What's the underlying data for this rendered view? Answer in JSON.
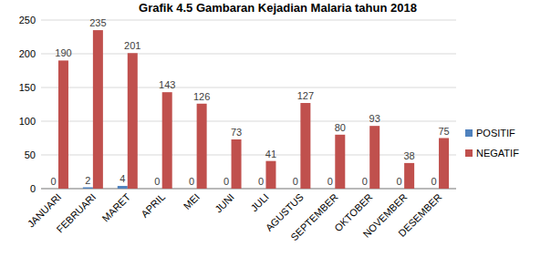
{
  "chart_data": {
    "type": "bar",
    "title": "Grafik 4.5 Gambaran Kejadian Malaria tahun 2018",
    "categories": [
      "JANUARI",
      "FEBRUARI",
      "MARET",
      "APRIL",
      "MEI",
      "JUNI",
      "JULI",
      "AGUSTUS",
      "SEPTEMBER",
      "OKTOBER",
      "NOVEMBER",
      "DESEMBER"
    ],
    "series": [
      {
        "name": "POSITIF",
        "color": "#4f81bd",
        "values": [
          0,
          2,
          4,
          0,
          0,
          0,
          0,
          0,
          0,
          0,
          0,
          0
        ]
      },
      {
        "name": "NEGATIF",
        "color": "#c0504d",
        "values": [
          190,
          235,
          201,
          143,
          126,
          73,
          41,
          127,
          80,
          93,
          38,
          75
        ]
      }
    ],
    "ylim": [
      0,
      250
    ],
    "yticks": [
      0,
      50,
      100,
      150,
      200,
      250
    ],
    "grid": true,
    "legend": "right",
    "data_labels": true
  }
}
